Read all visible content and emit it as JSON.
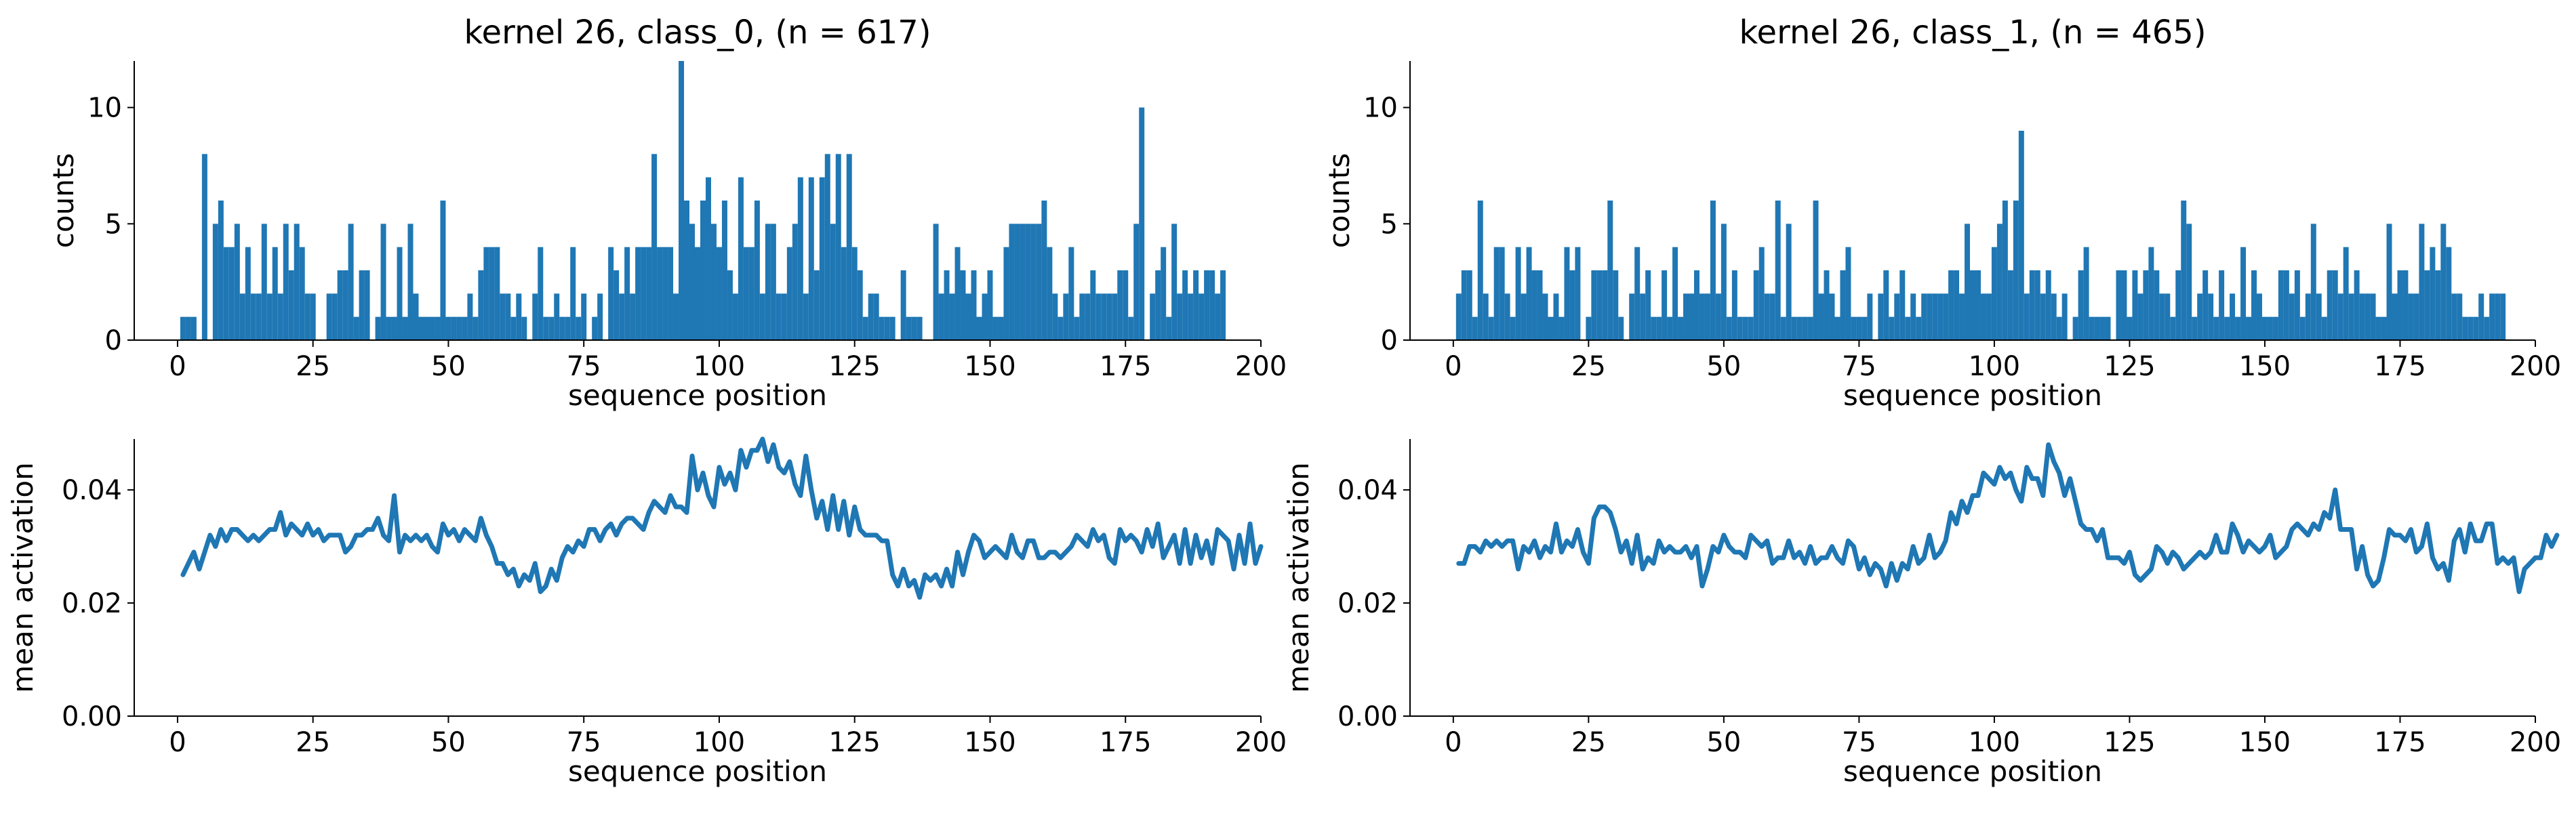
{
  "colors": {
    "series": "#1f77b4",
    "axis": "#000000",
    "background": "#ffffff"
  },
  "chart_data": [
    {
      "type": "bar",
      "panel": "top-left",
      "title": "kernel 26, class_0, (n = 617)",
      "xlabel": "sequence position",
      "ylabel": "counts",
      "xlim": [
        -8,
        200
      ],
      "ylim": [
        0,
        12
      ],
      "xticks": [
        0,
        25,
        50,
        75,
        100,
        125,
        150,
        175,
        200
      ],
      "yticks": [
        0,
        5,
        10
      ],
      "x_start": 1,
      "values": [
        1,
        1,
        1,
        0,
        8,
        0,
        5,
        6,
        4,
        4,
        5,
        2,
        4,
        2,
        2,
        5,
        2,
        4,
        2,
        5,
        3,
        5,
        4,
        2,
        2,
        0,
        0,
        2,
        2,
        3,
        3,
        5,
        1,
        3,
        3,
        0,
        1,
        5,
        1,
        1,
        4,
        1,
        5,
        2,
        1,
        1,
        1,
        1,
        6,
        1,
        1,
        1,
        1,
        2,
        1,
        3,
        4,
        4,
        4,
        2,
        2,
        1,
        2,
        1,
        0,
        2,
        4,
        1,
        1,
        2,
        1,
        1,
        4,
        1,
        2,
        0,
        1,
        2,
        0,
        4,
        3,
        2,
        4,
        2,
        4,
        4,
        4,
        8,
        4,
        4,
        4,
        2,
        12,
        6,
        5,
        4,
        6,
        7,
        5,
        4,
        6,
        3,
        2,
        7,
        4,
        4,
        6,
        2,
        5,
        5,
        2,
        2,
        4,
        5,
        7,
        2,
        7,
        3,
        7,
        8,
        5,
        8,
        4,
        8,
        4,
        3,
        1,
        2,
        2,
        1,
        1,
        1,
        0,
        3,
        1,
        1,
        1,
        0,
        0,
        5,
        2,
        3,
        2,
        4,
        3,
        2,
        3,
        1,
        2,
        3,
        1,
        1,
        4,
        5,
        5,
        5,
        5,
        5,
        5,
        6,
        4,
        2,
        1,
        2,
        4,
        1,
        2,
        2,
        3,
        2,
        2,
        2,
        2,
        3,
        3,
        1,
        5,
        10,
        0,
        2,
        3,
        4,
        1,
        5,
        2,
        3,
        2,
        3,
        2,
        3,
        3,
        2,
        3
      ],
      "grid": false
    },
    {
      "type": "bar",
      "panel": "top-right",
      "title": "kernel 26, class_1, (n = 465)",
      "xlabel": "sequence position",
      "ylabel": "counts",
      "xlim": [
        -8,
        200
      ],
      "ylim": [
        0,
        12
      ],
      "xticks": [
        0,
        25,
        50,
        75,
        100,
        125,
        150,
        175,
        200
      ],
      "yticks": [
        0,
        5,
        10
      ],
      "x_start": 1,
      "values": [
        2,
        3,
        3,
        1,
        6,
        2,
        1,
        4,
        4,
        2,
        1,
        4,
        2,
        4,
        3,
        3,
        2,
        1,
        2,
        1,
        4,
        3,
        4,
        0,
        1,
        3,
        3,
        3,
        6,
        3,
        1,
        0,
        2,
        4,
        2,
        3,
        1,
        1,
        3,
        1,
        4,
        1,
        2,
        2,
        3,
        2,
        2,
        6,
        2,
        5,
        1,
        3,
        1,
        1,
        1,
        3,
        4,
        2,
        2,
        6,
        1,
        5,
        1,
        1,
        1,
        1,
        6,
        2,
        3,
        2,
        1,
        3,
        4,
        1,
        1,
        1,
        2,
        0,
        2,
        3,
        1,
        2,
        3,
        1,
        2,
        1,
        2,
        2,
        2,
        2,
        2,
        3,
        3,
        2,
        5,
        3,
        3,
        2,
        2,
        4,
        5,
        6,
        3,
        6,
        9,
        2,
        3,
        3,
        2,
        3,
        2,
        1,
        2,
        0,
        1,
        3,
        4,
        1,
        1,
        1,
        1,
        0,
        3,
        3,
        1,
        3,
        2,
        3,
        4,
        3,
        2,
        2,
        1,
        3,
        6,
        5,
        1,
        2,
        3,
        2,
        1,
        3,
        1,
        2,
        1,
        4,
        1,
        3,
        2,
        1,
        1,
        1,
        3,
        3,
        2,
        3,
        1,
        2,
        5,
        2,
        1,
        3,
        3,
        2,
        4,
        2,
        3,
        2,
        2,
        2,
        1,
        1,
        5,
        2,
        3,
        3,
        2,
        2,
        5,
        3,
        4,
        3,
        5,
        4,
        2,
        2,
        1,
        1,
        1,
        2,
        1,
        2,
        2,
        2
      ],
      "grid": false
    },
    {
      "type": "line",
      "panel": "bottom-left",
      "xlabel": "sequence position",
      "ylabel": "mean activation",
      "xlim": [
        -8,
        200
      ],
      "ylim": [
        0,
        0.049
      ],
      "xticks": [
        0,
        25,
        50,
        75,
        100,
        125,
        150,
        175,
        200
      ],
      "yticks": [
        0.0,
        0.02,
        0.04
      ],
      "ytick_labels": [
        "0.00",
        "0.02",
        "0.04"
      ],
      "x_start": 1,
      "values": [
        0.025,
        0.027,
        0.029,
        0.026,
        0.029,
        0.032,
        0.03,
        0.033,
        0.031,
        0.033,
        0.033,
        0.032,
        0.031,
        0.032,
        0.031,
        0.032,
        0.033,
        0.033,
        0.036,
        0.032,
        0.034,
        0.033,
        0.032,
        0.034,
        0.032,
        0.033,
        0.031,
        0.032,
        0.032,
        0.032,
        0.029,
        0.03,
        0.032,
        0.032,
        0.033,
        0.033,
        0.035,
        0.032,
        0.031,
        0.039,
        0.029,
        0.032,
        0.031,
        0.032,
        0.031,
        0.032,
        0.03,
        0.029,
        0.034,
        0.032,
        0.033,
        0.031,
        0.033,
        0.032,
        0.031,
        0.035,
        0.032,
        0.03,
        0.027,
        0.027,
        0.025,
        0.026,
        0.023,
        0.025,
        0.024,
        0.027,
        0.022,
        0.023,
        0.026,
        0.024,
        0.028,
        0.03,
        0.029,
        0.031,
        0.03,
        0.033,
        0.033,
        0.031,
        0.033,
        0.034,
        0.032,
        0.034,
        0.035,
        0.035,
        0.034,
        0.033,
        0.036,
        0.038,
        0.037,
        0.036,
        0.039,
        0.037,
        0.037,
        0.036,
        0.046,
        0.04,
        0.043,
        0.039,
        0.037,
        0.044,
        0.041,
        0.043,
        0.04,
        0.047,
        0.044,
        0.047,
        0.047,
        0.049,
        0.045,
        0.048,
        0.044,
        0.043,
        0.045,
        0.041,
        0.039,
        0.046,
        0.04,
        0.035,
        0.038,
        0.033,
        0.039,
        0.033,
        0.038,
        0.032,
        0.037,
        0.033,
        0.032,
        0.032,
        0.032,
        0.031,
        0.031,
        0.025,
        0.023,
        0.026,
        0.023,
        0.024,
        0.021,
        0.025,
        0.024,
        0.025,
        0.023,
        0.026,
        0.023,
        0.029,
        0.025,
        0.029,
        0.032,
        0.031,
        0.028,
        0.029,
        0.03,
        0.029,
        0.028,
        0.032,
        0.029,
        0.028,
        0.031,
        0.031,
        0.028,
        0.028,
        0.029,
        0.029,
        0.028,
        0.029,
        0.03,
        0.032,
        0.031,
        0.03,
        0.033,
        0.031,
        0.032,
        0.028,
        0.027,
        0.033,
        0.031,
        0.032,
        0.031,
        0.029,
        0.033,
        0.03,
        0.034,
        0.028,
        0.03,
        0.032,
        0.027,
        0.033,
        0.027,
        0.032,
        0.028,
        0.031,
        0.027,
        0.033,
        0.032,
        0.031,
        0.026,
        0.032,
        0.027,
        0.034,
        0.027,
        0.03
      ],
      "grid": false
    },
    {
      "type": "line",
      "panel": "bottom-right",
      "xlabel": "sequence position",
      "ylabel": "mean activation",
      "xlim": [
        -8,
        200
      ],
      "ylim": [
        0,
        0.049
      ],
      "xticks": [
        0,
        25,
        50,
        75,
        100,
        125,
        150,
        175,
        200
      ],
      "yticks": [
        0.0,
        0.02,
        0.04
      ],
      "ytick_labels": [
        "0.00",
        "0.02",
        "0.04"
      ],
      "x_start": 1,
      "values": [
        0.027,
        0.027,
        0.03,
        0.03,
        0.029,
        0.031,
        0.03,
        0.031,
        0.03,
        0.031,
        0.031,
        0.026,
        0.03,
        0.029,
        0.031,
        0.028,
        0.03,
        0.029,
        0.034,
        0.029,
        0.031,
        0.03,
        0.033,
        0.029,
        0.027,
        0.035,
        0.037,
        0.037,
        0.036,
        0.033,
        0.029,
        0.031,
        0.027,
        0.032,
        0.026,
        0.028,
        0.027,
        0.031,
        0.029,
        0.03,
        0.029,
        0.029,
        0.03,
        0.028,
        0.03,
        0.023,
        0.026,
        0.03,
        0.029,
        0.032,
        0.03,
        0.029,
        0.029,
        0.028,
        0.032,
        0.031,
        0.03,
        0.031,
        0.027,
        0.028,
        0.028,
        0.031,
        0.028,
        0.029,
        0.027,
        0.03,
        0.027,
        0.028,
        0.028,
        0.03,
        0.028,
        0.027,
        0.031,
        0.03,
        0.026,
        0.028,
        0.025,
        0.027,
        0.026,
        0.023,
        0.027,
        0.024,
        0.027,
        0.026,
        0.03,
        0.027,
        0.028,
        0.032,
        0.028,
        0.029,
        0.031,
        0.036,
        0.034,
        0.038,
        0.036,
        0.039,
        0.039,
        0.043,
        0.042,
        0.041,
        0.044,
        0.042,
        0.043,
        0.04,
        0.038,
        0.044,
        0.042,
        0.042,
        0.039,
        0.048,
        0.045,
        0.043,
        0.039,
        0.042,
        0.038,
        0.034,
        0.033,
        0.033,
        0.031,
        0.033,
        0.028,
        0.028,
        0.028,
        0.027,
        0.029,
        0.025,
        0.024,
        0.025,
        0.026,
        0.03,
        0.029,
        0.027,
        0.029,
        0.028,
        0.026,
        0.027,
        0.028,
        0.029,
        0.028,
        0.029,
        0.032,
        0.029,
        0.029,
        0.034,
        0.032,
        0.029,
        0.031,
        0.03,
        0.029,
        0.03,
        0.032,
        0.028,
        0.029,
        0.03,
        0.033,
        0.034,
        0.033,
        0.032,
        0.034,
        0.033,
        0.036,
        0.035,
        0.04,
        0.033,
        0.033,
        0.033,
        0.026,
        0.03,
        0.025,
        0.023,
        0.024,
        0.028,
        0.033,
        0.032,
        0.032,
        0.031,
        0.033,
        0.029,
        0.03,
        0.034,
        0.028,
        0.026,
        0.027,
        0.024,
        0.031,
        0.033,
        0.029,
        0.034,
        0.031,
        0.031,
        0.034,
        0.034,
        0.027,
        0.028,
        0.027,
        0.028,
        0.022,
        0.026,
        0.027,
        0.028,
        0.028,
        0.032,
        0.03,
        0.032
      ],
      "grid": false
    }
  ]
}
